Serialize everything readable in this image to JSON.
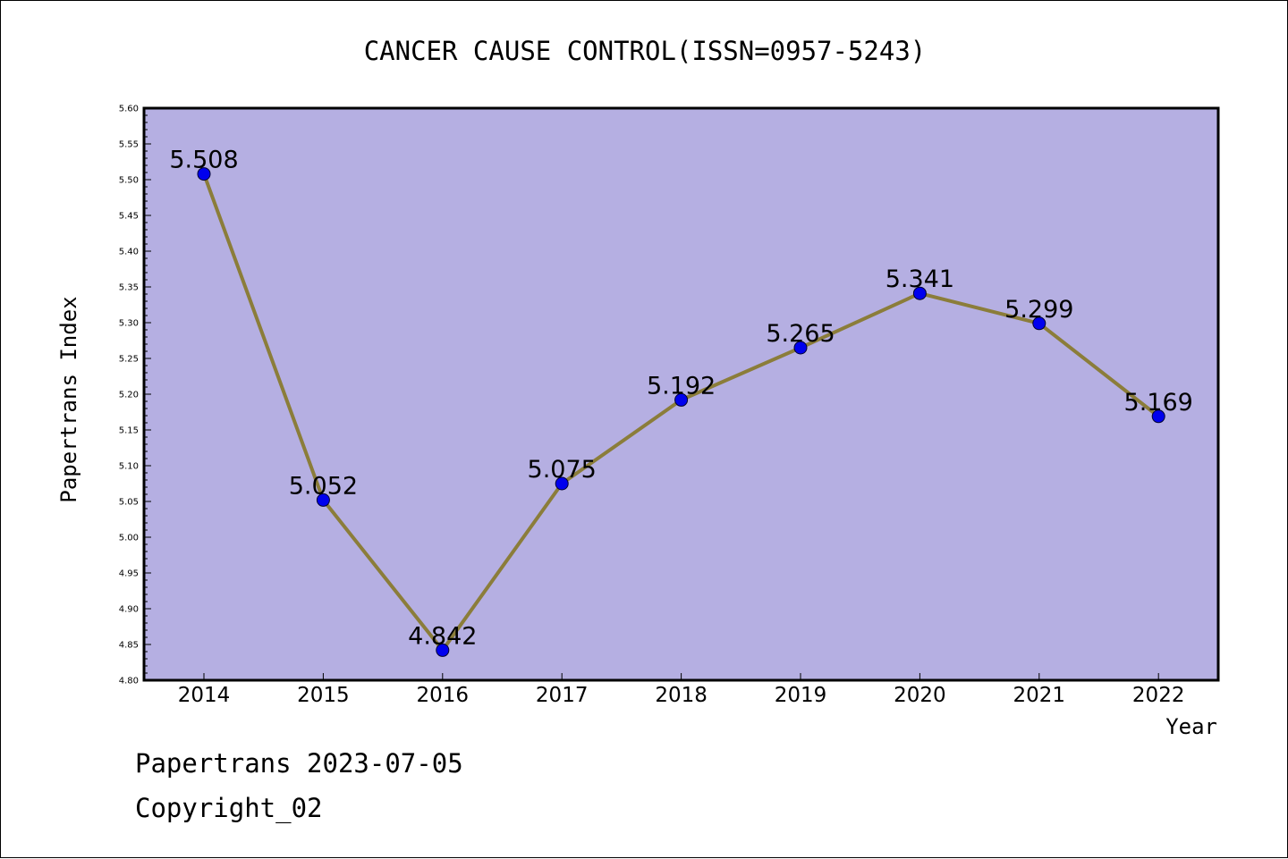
{
  "chart_data": {
    "type": "line",
    "title": "CANCER CAUSE CONTROL(ISSN=0957-5243)",
    "xlabel": "Year",
    "ylabel": "Papertrans Index",
    "x": [
      "2014",
      "2015",
      "2016",
      "2017",
      "2018",
      "2019",
      "2020",
      "2021",
      "2022"
    ],
    "series": [
      {
        "values": [
          5.508,
          5.052,
          4.842,
          5.075,
          5.192,
          5.265,
          5.341,
          5.299,
          5.169
        ],
        "labels": [
          "5.508",
          "5.052",
          "4.842",
          "5.075",
          "5.192",
          "5.265",
          "5.341",
          "5.299",
          "5.169"
        ]
      }
    ],
    "ylim": [
      4.8,
      5.6
    ],
    "yticks": [
      "4.80",
      "4.85",
      "4.90",
      "4.95",
      "5.00",
      "5.05",
      "5.10",
      "5.15",
      "5.20",
      "5.25",
      "5.30",
      "5.35",
      "5.40",
      "5.45",
      "5.50",
      "5.55",
      "5.60"
    ],
    "grid": false,
    "colors": {
      "plot_background": "#b5afe2",
      "line": "#8b7d3a",
      "marker": "#0000ee"
    }
  },
  "footer": {
    "line1": "Papertrans 2023-07-05",
    "line2": "Copyright_02"
  }
}
